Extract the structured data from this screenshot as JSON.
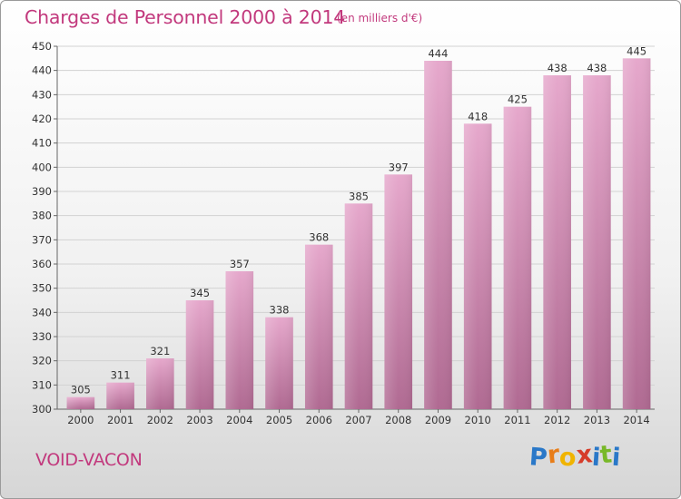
{
  "chart_data": {
    "type": "bar",
    "title": "Charges de Personnel 2000 à 2014",
    "subtitle": "(en milliers d'€)",
    "categories": [
      "2000",
      "2001",
      "2002",
      "2003",
      "2004",
      "2005",
      "2006",
      "2007",
      "2008",
      "2009",
      "2010",
      "2011",
      "2012",
      "2013",
      "2014"
    ],
    "values": [
      305,
      311,
      321,
      345,
      357,
      338,
      368,
      385,
      397,
      444,
      418,
      425,
      438,
      438,
      445
    ],
    "ylim": [
      300,
      450
    ],
    "yticks": [
      300,
      310,
      320,
      330,
      340,
      350,
      360,
      370,
      380,
      390,
      400,
      410,
      420,
      430,
      440,
      450
    ],
    "grid": true,
    "bar_color_top": "#e6a8cc",
    "bar_color_bottom": "#b06a92",
    "title_color": "#c2397d"
  },
  "commune": "VOID-VACON",
  "logo": {
    "letters": [
      "P",
      "r",
      "o",
      "x",
      "i",
      "t",
      "i"
    ],
    "colors": [
      "#2a78c8",
      "#e87d18",
      "#f0b400",
      "#d63c2a",
      "#2a78c8",
      "#78b828",
      "#2a78c8"
    ]
  }
}
